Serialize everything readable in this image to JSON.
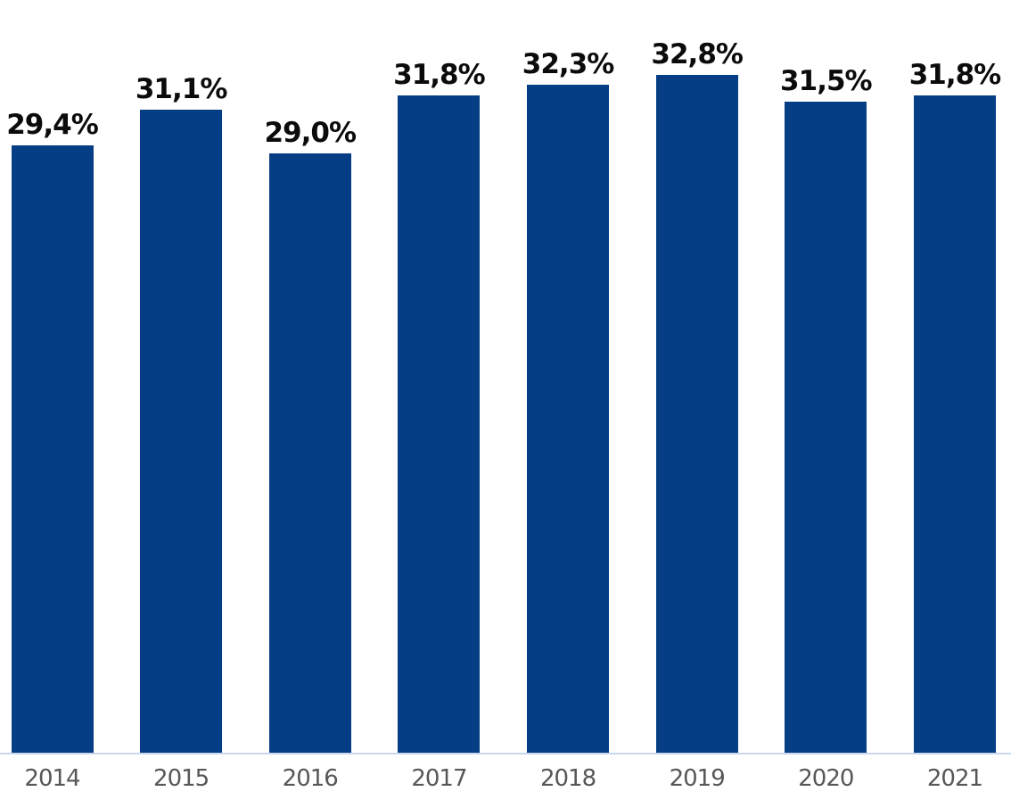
{
  "chart_data": {
    "type": "bar",
    "title": "",
    "xlabel": "",
    "ylabel": "",
    "categories": [
      "2014",
      "2015",
      "2016",
      "2017",
      "2018",
      "2019",
      "2020",
      "2021"
    ],
    "values": [
      29.4,
      31.1,
      29.0,
      31.8,
      32.3,
      32.8,
      31.5,
      31.8
    ],
    "value_labels": [
      "29,4%",
      "31,1%",
      "29,0%",
      "31,8%",
      "32,3%",
      "32,8%",
      "31,5%",
      "31,8%"
    ],
    "ylim": [
      0,
      36.5
    ],
    "grid": false,
    "legend": null,
    "colors": {
      "bar_fill": "#053E85",
      "value_label": "#0b0b0b",
      "tick_label": "#565759",
      "baseline": "#c9d7ee",
      "background": "#ffffff"
    }
  }
}
